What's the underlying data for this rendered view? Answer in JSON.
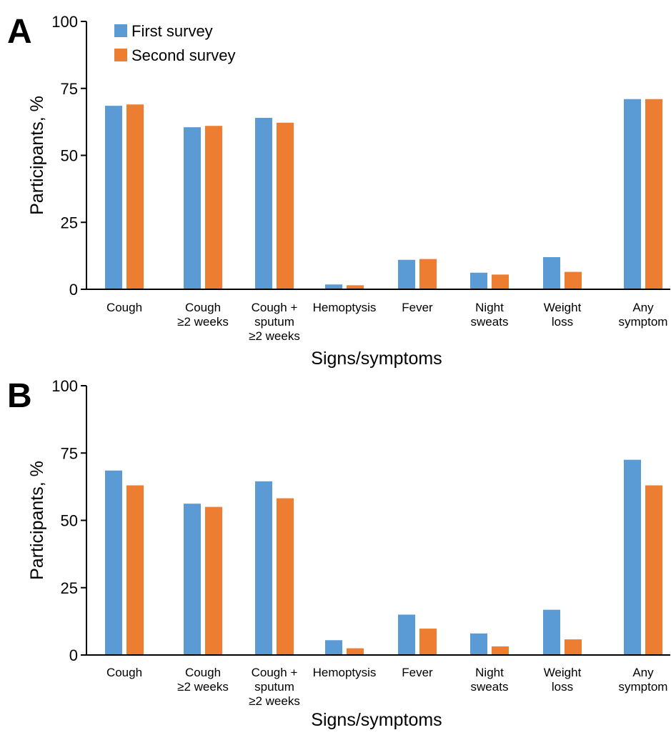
{
  "figure": {
    "colors": {
      "first_survey": "#5b9bd5",
      "second_survey": "#ed7d31"
    },
    "legend": {
      "placement": "top-left",
      "entries": [
        "First survey",
        "Second survey"
      ]
    }
  },
  "chart_data": [
    {
      "type": "bar",
      "panel": "A",
      "xlabel": "Signs/symptoms",
      "ylabel": "Participants, %",
      "ylim": [
        0,
        100
      ],
      "yticks": [
        0,
        25,
        50,
        75,
        100
      ],
      "grid": false,
      "legend": "top-left",
      "categories": [
        [
          "Cough"
        ],
        [
          "Cough",
          "≥2 weeks"
        ],
        [
          "Cough +",
          "sputum",
          "≥2 weeks"
        ],
        [
          "Hemoptysis"
        ],
        [
          "Fever"
        ],
        [
          "Night",
          "sweats"
        ],
        [
          "Weight",
          "loss"
        ],
        [
          "Any",
          "symptom"
        ]
      ],
      "series": [
        {
          "name": "First survey",
          "color": "#5b9bd5",
          "values": [
            68.5,
            60.5,
            64,
            1.8,
            11,
            6.2,
            12,
            71
          ]
        },
        {
          "name": "Second survey",
          "color": "#ed7d31",
          "values": [
            69,
            61,
            62.2,
            1.5,
            11.3,
            5.5,
            6.5,
            71
          ]
        }
      ]
    },
    {
      "type": "bar",
      "panel": "B",
      "xlabel": "Signs/symptoms",
      "ylabel": "Participants, %",
      "ylim": [
        0,
        100
      ],
      "yticks": [
        0,
        25,
        50,
        75,
        100
      ],
      "grid": false,
      "legend": "",
      "categories": [
        [
          "Cough"
        ],
        [
          "Cough",
          "≥2 weeks"
        ],
        [
          "Cough +",
          "sputum",
          "≥2 weeks"
        ],
        [
          "Hemoptysis"
        ],
        [
          "Fever"
        ],
        [
          "Night",
          "sweats"
        ],
        [
          "Weight",
          "loss"
        ],
        [
          "Any",
          "symptom"
        ]
      ],
      "series": [
        {
          "name": "First survey",
          "color": "#5b9bd5",
          "values": [
            68.5,
            56.2,
            64.5,
            5.5,
            15,
            8,
            16.8,
            72.5
          ]
        },
        {
          "name": "Second survey",
          "color": "#ed7d31",
          "values": [
            63,
            55,
            58.2,
            2.5,
            9.8,
            3.2,
            5.8,
            63
          ]
        }
      ]
    }
  ]
}
